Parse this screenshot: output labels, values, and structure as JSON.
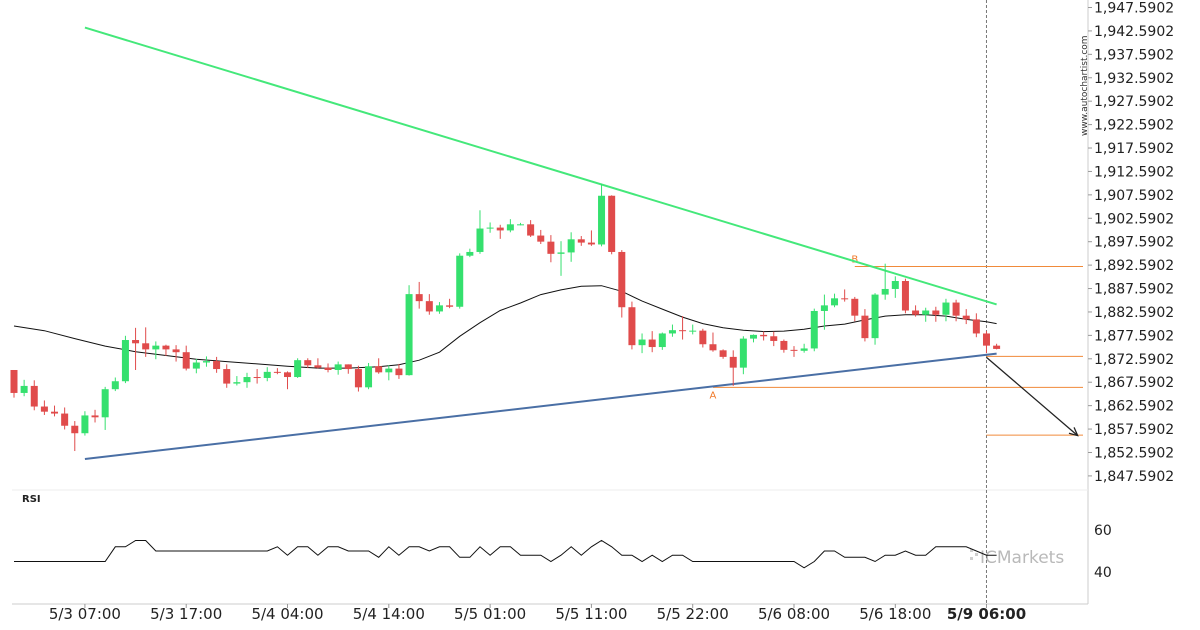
{
  "watermark": "www.autochartist.com",
  "brand": {
    "prefix": "IC",
    "name": "Markets"
  },
  "rsi_label": "RSI",
  "chart_data": {
    "type": "candlestick",
    "title": "",
    "price_axis": {
      "ticks": [
        "1,947.5902",
        "1,942.5902",
        "1,937.5902",
        "1,932.5902",
        "1,927.5902",
        "1,922.5902",
        "1,917.5902",
        "1,912.5902",
        "1,907.5902",
        "1,902.5902",
        "1,897.5902",
        "1,892.5902",
        "1,887.5902",
        "1,882.5902",
        "1,877.5902",
        "1,872.5902",
        "1,867.5902",
        "1,862.5902",
        "1,857.5902",
        "1,852.5902",
        "1,847.5902"
      ],
      "range": [
        1845.4,
        1947.59
      ]
    },
    "x_axis": {
      "ticks": [
        "5/3 07:00",
        "5/3 17:00",
        "5/4 04:00",
        "5/4 14:00",
        "5/5 01:00",
        "5/5 11:00",
        "5/5 22:00",
        "5/6 08:00",
        "5/6 18:00",
        "5/9 06:00"
      ],
      "tick_index": [
        7,
        17,
        27,
        37,
        47,
        57,
        67,
        77,
        87,
        96
      ],
      "current_label": "5/9 06:00",
      "n_bars": 98
    },
    "colors": {
      "up": "#35e06e",
      "down": "#e04b4b",
      "resistance": "#44e87a",
      "support": "#4a6fa5",
      "levels": "#f08a3a",
      "ma": "#111111"
    },
    "candles": [
      [
        1870.2,
        1870.2,
        1864.3,
        1865.3
      ],
      [
        1865.3,
        1868.1,
        1864.6,
        1866.8
      ],
      [
        1866.8,
        1868.0,
        1861.6,
        1862.4
      ],
      [
        1862.4,
        1863.7,
        1860.6,
        1861.3
      ],
      [
        1861.3,
        1862.6,
        1860.3,
        1860.9
      ],
      [
        1860.9,
        1862.2,
        1857.5,
        1858.3
      ],
      [
        1858.3,
        1859.3,
        1852.9,
        1856.7
      ],
      [
        1856.7,
        1861.4,
        1856.2,
        1860.5
      ],
      [
        1860.5,
        1861.7,
        1859.0,
        1860.1
      ],
      [
        1860.1,
        1866.6,
        1857.4,
        1866.1
      ],
      [
        1866.1,
        1868.6,
        1865.7,
        1867.8
      ],
      [
        1867.8,
        1877.5,
        1867.4,
        1876.6
      ],
      [
        1876.6,
        1879.2,
        1870.2,
        1875.9
      ],
      [
        1875.9,
        1879.3,
        1873.0,
        1874.6
      ],
      [
        1874.6,
        1876.3,
        1872.5,
        1875.4
      ],
      [
        1875.4,
        1875.6,
        1873.2,
        1874.6
      ],
      [
        1874.6,
        1875.5,
        1872.0,
        1874.0
      ],
      [
        1874.0,
        1875.4,
        1870.1,
        1870.5
      ],
      [
        1870.5,
        1872.6,
        1869.5,
        1871.8
      ],
      [
        1871.8,
        1873.1,
        1870.9,
        1872.1
      ],
      [
        1872.1,
        1873.0,
        1869.6,
        1870.4
      ],
      [
        1870.4,
        1871.4,
        1866.4,
        1867.3
      ],
      [
        1867.3,
        1868.9,
        1866.9,
        1867.6
      ],
      [
        1867.6,
        1869.6,
        1866.4,
        1868.7
      ],
      [
        1868.7,
        1870.4,
        1867.3,
        1868.5
      ],
      [
        1868.5,
        1870.8,
        1867.8,
        1869.8
      ],
      [
        1869.8,
        1870.6,
        1869.3,
        1869.7
      ],
      [
        1869.7,
        1869.9,
        1866.1,
        1868.7
      ],
      [
        1868.7,
        1872.7,
        1868.5,
        1872.3
      ],
      [
        1872.3,
        1872.7,
        1870.6,
        1871.2
      ],
      [
        1871.2,
        1872.7,
        1870.5,
        1870.7
      ],
      [
        1870.7,
        1871.6,
        1869.7,
        1870.2
      ],
      [
        1870.2,
        1872.0,
        1869.2,
        1871.4
      ],
      [
        1871.4,
        1871.4,
        1869.4,
        1870.4
      ],
      [
        1870.4,
        1871.1,
        1865.6,
        1866.5
      ],
      [
        1866.5,
        1871.7,
        1866.1,
        1871.0
      ],
      [
        1871.0,
        1872.7,
        1869.4,
        1869.7
      ],
      [
        1869.7,
        1871.2,
        1868.0,
        1870.5
      ],
      [
        1870.5,
        1871.5,
        1868.3,
        1869.1
      ],
      [
        1869.1,
        1888.3,
        1869.0,
        1886.4
      ],
      [
        1886.4,
        1889.0,
        1883.3,
        1884.9
      ],
      [
        1884.9,
        1886.4,
        1882.0,
        1882.7
      ],
      [
        1882.7,
        1884.7,
        1882.2,
        1884.0
      ],
      [
        1884.0,
        1885.4,
        1883.4,
        1883.7
      ],
      [
        1883.7,
        1895.1,
        1883.3,
        1894.6
      ],
      [
        1894.6,
        1896.1,
        1894.3,
        1895.4
      ],
      [
        1895.4,
        1904.3,
        1895.0,
        1900.4
      ],
      [
        1900.4,
        1901.7,
        1899.5,
        1900.6
      ],
      [
        1900.6,
        1901.2,
        1898.2,
        1900.0
      ],
      [
        1900.0,
        1902.4,
        1899.6,
        1901.3
      ],
      [
        1901.3,
        1901.6,
        1901.1,
        1901.3
      ],
      [
        1901.3,
        1902.2,
        1898.6,
        1898.9
      ],
      [
        1898.9,
        1900.1,
        1897.1,
        1897.6
      ],
      [
        1897.6,
        1899.0,
        1893.2,
        1895.0
      ],
      [
        1895.0,
        1897.7,
        1890.3,
        1895.3
      ],
      [
        1895.3,
        1899.6,
        1893.3,
        1898.1
      ],
      [
        1898.1,
        1898.8,
        1896.7,
        1897.4
      ],
      [
        1897.4,
        1900.0,
        1896.7,
        1897.0
      ],
      [
        1897.0,
        1910.0,
        1896.6,
        1907.4
      ],
      [
        1907.4,
        1907.5,
        1894.9,
        1895.4
      ],
      [
        1895.4,
        1895.8,
        1881.4,
        1883.6
      ],
      [
        1883.6,
        1884.8,
        1874.6,
        1875.5
      ],
      [
        1875.5,
        1878.0,
        1873.8,
        1876.7
      ],
      [
        1876.7,
        1878.5,
        1874.0,
        1875.1
      ],
      [
        1875.1,
        1878.2,
        1874.5,
        1878.0
      ],
      [
        1878.0,
        1879.9,
        1877.3,
        1878.7
      ],
      [
        1878.7,
        1881.7,
        1876.7,
        1878.5
      ],
      [
        1878.5,
        1879.9,
        1877.8,
        1878.6
      ],
      [
        1878.6,
        1879.0,
        1875.0,
        1875.7
      ],
      [
        1875.7,
        1878.2,
        1874.1,
        1874.4
      ],
      [
        1874.4,
        1874.6,
        1872.6,
        1873.0
      ],
      [
        1873.0,
        1874.4,
        1866.8,
        1870.7
      ],
      [
        1870.7,
        1877.4,
        1869.3,
        1876.9
      ],
      [
        1876.9,
        1877.8,
        1876.1,
        1877.7
      ],
      [
        1877.7,
        1878.4,
        1876.5,
        1877.4
      ],
      [
        1877.4,
        1878.4,
        1875.3,
        1876.4
      ],
      [
        1876.4,
        1876.7,
        1873.9,
        1874.5
      ],
      [
        1874.5,
        1875.3,
        1873.0,
        1874.3
      ],
      [
        1874.3,
        1875.8,
        1873.9,
        1874.8
      ],
      [
        1874.8,
        1883.3,
        1874.2,
        1882.8
      ],
      [
        1882.8,
        1886.3,
        1878.8,
        1884.0
      ],
      [
        1884.0,
        1886.5,
        1883.6,
        1885.5
      ],
      [
        1885.5,
        1887.4,
        1884.8,
        1885.4
      ],
      [
        1885.4,
        1885.8,
        1880.6,
        1881.8
      ],
      [
        1881.8,
        1883.2,
        1876.3,
        1877.0
      ],
      [
        1877.0,
        1886.6,
        1875.6,
        1886.3
      ],
      [
        1886.3,
        1892.9,
        1885.2,
        1887.5
      ],
      [
        1887.5,
        1890.2,
        1885.6,
        1889.2
      ],
      [
        1889.2,
        1889.7,
        1882.3,
        1882.9
      ],
      [
        1882.9,
        1884.0,
        1881.6,
        1882.0
      ],
      [
        1882.0,
        1883.5,
        1880.5,
        1882.9
      ],
      [
        1882.9,
        1883.7,
        1880.5,
        1882.0
      ],
      [
        1882.0,
        1885.4,
        1880.6,
        1884.6
      ],
      [
        1884.6,
        1885.2,
        1880.6,
        1881.8
      ],
      [
        1881.8,
        1883.2,
        1880.0,
        1881.0
      ],
      [
        1881.0,
        1882.3,
        1877.2,
        1878.0
      ],
      [
        1878.0,
        1878.5,
        1873.8,
        1875.4
      ],
      [
        1875.4,
        1875.8,
        1874.6,
        1874.7
      ]
    ],
    "moving_average": [
      [
        0,
        1879.6
      ],
      [
        3,
        1878.6
      ],
      [
        6,
        1876.9
      ],
      [
        9,
        1875.3
      ],
      [
        12,
        1874.1
      ],
      [
        15,
        1873.3
      ],
      [
        18,
        1872.5
      ],
      [
        21,
        1872.0
      ],
      [
        24,
        1871.5
      ],
      [
        27,
        1871.0
      ],
      [
        30,
        1870.6
      ],
      [
        33,
        1870.6
      ],
      [
        36,
        1870.9
      ],
      [
        38,
        1871.3
      ],
      [
        40,
        1872.3
      ],
      [
        42,
        1874.0
      ],
      [
        44,
        1877.4
      ],
      [
        46,
        1880.3
      ],
      [
        48,
        1882.9
      ],
      [
        50,
        1884.5
      ],
      [
        52,
        1886.3
      ],
      [
        54,
        1887.3
      ],
      [
        56,
        1888.1
      ],
      [
        58,
        1888.2
      ],
      [
        60,
        1887.0
      ],
      [
        62,
        1884.9
      ],
      [
        64,
        1883.2
      ],
      [
        66,
        1881.5
      ],
      [
        68,
        1880.1
      ],
      [
        70,
        1879.2
      ],
      [
        72,
        1878.7
      ],
      [
        74,
        1878.4
      ],
      [
        76,
        1878.5
      ],
      [
        78,
        1878.9
      ],
      [
        80,
        1879.6
      ],
      [
        82,
        1880.0
      ],
      [
        84,
        1880.9
      ],
      [
        86,
        1881.7
      ],
      [
        88,
        1882.0
      ],
      [
        90,
        1882.0
      ],
      [
        92,
        1881.7
      ],
      [
        94,
        1881.0
      ],
      [
        96,
        1880.5
      ],
      [
        97,
        1880.1
      ]
    ],
    "resistance_line": {
      "from": [
        7,
        1943.3
      ],
      "to": [
        97,
        1884.2
      ]
    },
    "support_line": {
      "from": [
        7,
        1851.2
      ],
      "to": [
        97,
        1873.7
      ]
    },
    "levels": [
      {
        "label": "B",
        "value": 1892.3,
        "from_index": 83
      },
      {
        "label": "",
        "value": 1873.1,
        "from_index": 96
      },
      {
        "label": "A",
        "value": 1866.5,
        "from_index": 69
      },
      {
        "label": "",
        "value": 1856.3,
        "from_index": 96
      }
    ],
    "forecast_arrow": {
      "from": [
        96,
        1872.9
      ],
      "to": [
        105,
        1856.2
      ]
    },
    "rsi": {
      "label": "RSI",
      "ticks": [
        60,
        40
      ],
      "values": [
        45,
        45,
        45,
        45,
        45,
        45,
        45,
        45,
        45,
        45,
        52,
        52,
        55,
        55,
        50,
        50,
        50,
        50,
        50,
        50,
        50,
        50,
        50,
        50,
        50,
        50,
        52,
        48,
        52,
        52,
        48,
        52,
        52,
        50,
        50,
        50,
        47,
        52,
        48,
        52,
        52,
        50,
        52,
        52,
        47,
        47,
        52,
        48,
        52,
        52,
        48,
        48,
        48,
        45,
        48,
        52,
        48,
        52,
        55,
        52,
        48,
        48,
        45,
        48,
        45,
        48,
        48,
        45,
        45,
        45,
        45,
        45,
        45,
        45,
        45,
        45,
        45,
        45,
        42,
        45,
        50,
        50,
        47,
        47,
        47,
        45,
        48,
        48,
        50,
        48,
        48,
        52,
        52,
        52,
        52,
        50,
        48,
        48
      ]
    }
  }
}
